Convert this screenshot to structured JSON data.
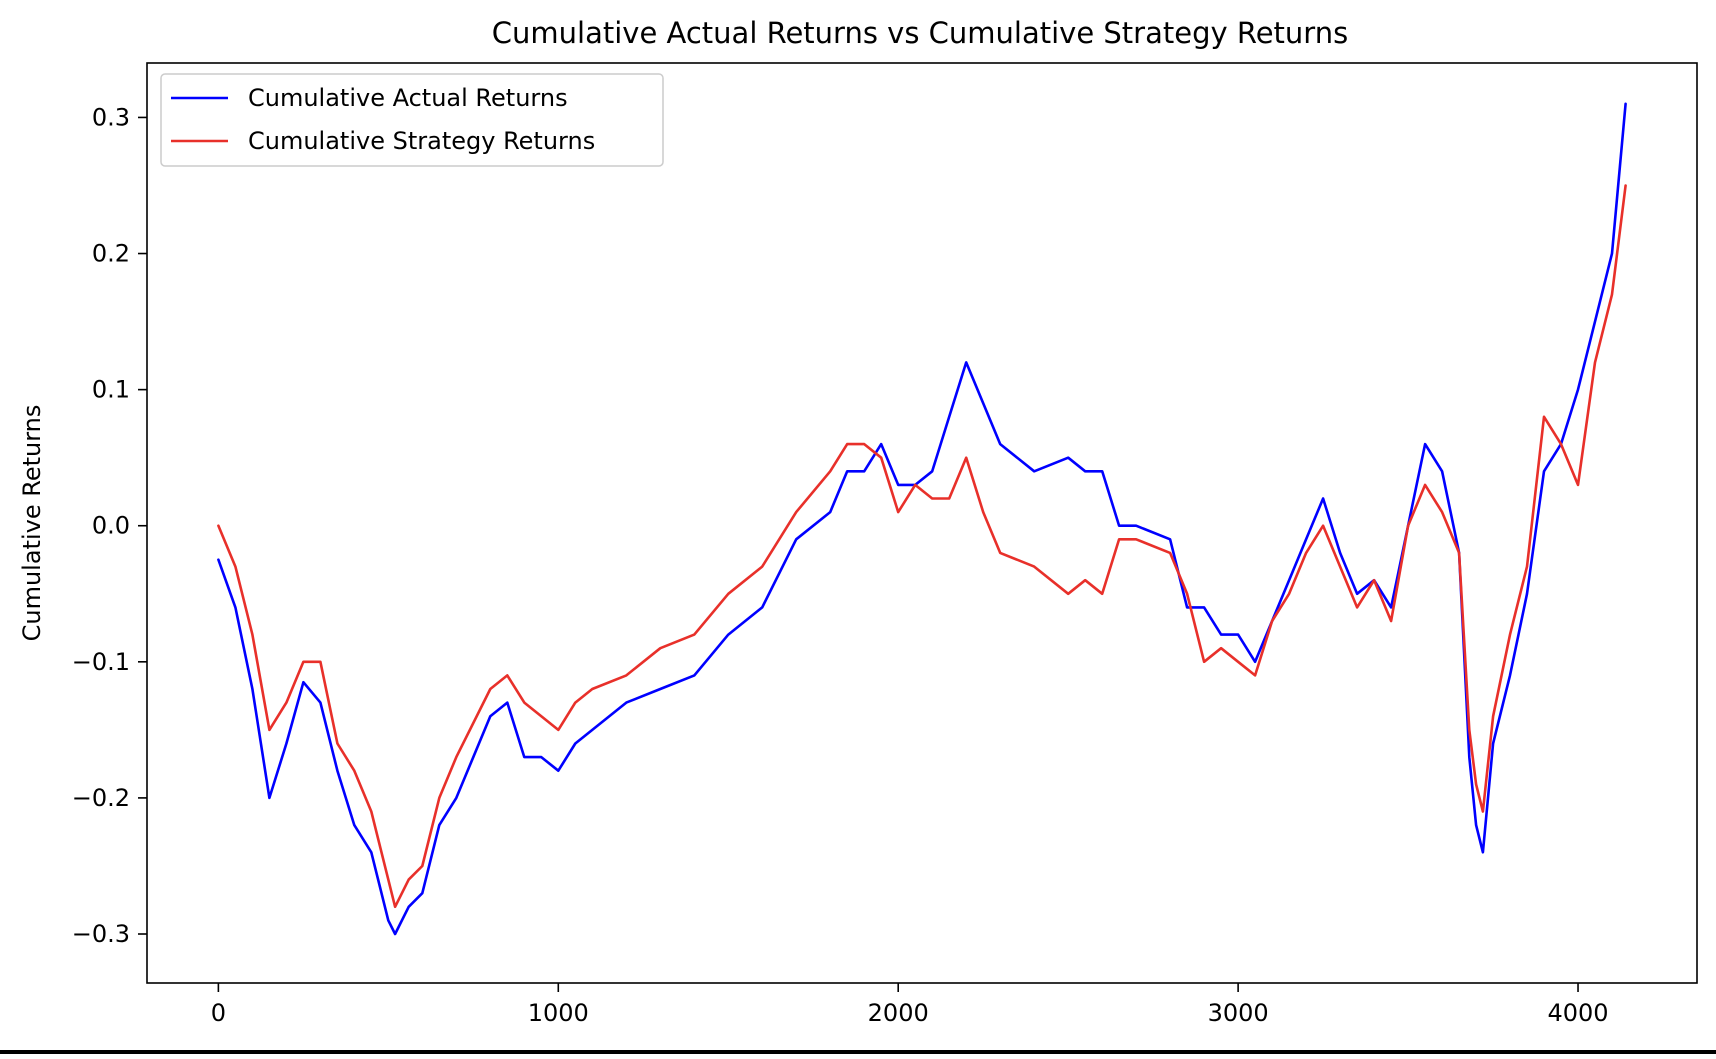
{
  "chart_data": {
    "type": "line",
    "title": "Cumulative Actual Returns vs Cumulative Strategy Returns",
    "xlabel": "",
    "ylabel": "Cumulative Returns",
    "xlim": [
      -210,
      4350
    ],
    "ylim": [
      -0.336,
      0.34
    ],
    "xticks": [
      0,
      1000,
      2000,
      3000,
      4000
    ],
    "xtick_labels": [
      "0",
      "1000",
      "2000",
      "3000",
      "4000"
    ],
    "yticks": [
      -0.3,
      -0.2,
      -0.1,
      0.0,
      0.1,
      0.2,
      0.3
    ],
    "ytick_labels": [
      "−0.3",
      "−0.2",
      "−0.1",
      "0.0",
      "0.1",
      "0.2",
      "0.3"
    ],
    "grid": false,
    "legend_position": "upper-left",
    "series": [
      {
        "name": "Cumulative Actual Returns",
        "color": "#0000ff",
        "x": [
          0,
          50,
          100,
          150,
          200,
          250,
          300,
          350,
          400,
          450,
          500,
          520,
          560,
          600,
          650,
          700,
          800,
          850,
          900,
          950,
          1000,
          1050,
          1100,
          1200,
          1300,
          1400,
          1500,
          1600,
          1700,
          1800,
          1850,
          1900,
          1950,
          2000,
          2050,
          2100,
          2150,
          2200,
          2250,
          2300,
          2400,
          2500,
          2550,
          2600,
          2650,
          2700,
          2800,
          2850,
          2900,
          2950,
          3000,
          3050,
          3100,
          3150,
          3200,
          3250,
          3300,
          3350,
          3400,
          3450,
          3500,
          3550,
          3600,
          3650,
          3680,
          3700,
          3720,
          3750,
          3800,
          3850,
          3900,
          3950,
          4000,
          4050,
          4100,
          4140
        ],
        "y": [
          -0.025,
          -0.06,
          -0.12,
          -0.2,
          -0.16,
          -0.115,
          -0.13,
          -0.18,
          -0.22,
          -0.24,
          -0.29,
          -0.3,
          -0.28,
          -0.27,
          -0.22,
          -0.2,
          -0.14,
          -0.13,
          -0.17,
          -0.17,
          -0.18,
          -0.16,
          -0.15,
          -0.13,
          -0.12,
          -0.11,
          -0.08,
          -0.06,
          -0.01,
          0.01,
          0.04,
          0.04,
          0.06,
          0.03,
          0.03,
          0.04,
          0.08,
          0.12,
          0.09,
          0.06,
          0.04,
          0.05,
          0.04,
          0.04,
          0.0,
          0.0,
          -0.01,
          -0.06,
          -0.06,
          -0.08,
          -0.08,
          -0.1,
          -0.07,
          -0.04,
          -0.01,
          0.02,
          -0.02,
          -0.05,
          -0.04,
          -0.06,
          0.0,
          0.06,
          0.04,
          -0.02,
          -0.17,
          -0.22,
          -0.24,
          -0.16,
          -0.11,
          -0.05,
          0.04,
          0.06,
          0.1,
          0.15,
          0.2,
          0.31
        ]
      },
      {
        "name": "Cumulative Strategy Returns",
        "color": "#e8302a",
        "x": [
          0,
          50,
          100,
          150,
          200,
          250,
          300,
          350,
          400,
          450,
          500,
          520,
          560,
          600,
          650,
          700,
          800,
          850,
          900,
          950,
          1000,
          1050,
          1100,
          1200,
          1300,
          1400,
          1500,
          1600,
          1700,
          1800,
          1850,
          1900,
          1950,
          2000,
          2050,
          2100,
          2150,
          2200,
          2250,
          2300,
          2400,
          2500,
          2550,
          2600,
          2650,
          2700,
          2800,
          2850,
          2900,
          2950,
          3000,
          3050,
          3100,
          3150,
          3200,
          3250,
          3300,
          3350,
          3400,
          3450,
          3500,
          3550,
          3600,
          3650,
          3680,
          3700,
          3720,
          3750,
          3800,
          3850,
          3900,
          3950,
          4000,
          4050,
          4100,
          4140
        ],
        "y": [
          0.0,
          -0.03,
          -0.08,
          -0.15,
          -0.13,
          -0.1,
          -0.1,
          -0.16,
          -0.18,
          -0.21,
          -0.26,
          -0.28,
          -0.26,
          -0.25,
          -0.2,
          -0.17,
          -0.12,
          -0.11,
          -0.13,
          -0.14,
          -0.15,
          -0.13,
          -0.12,
          -0.11,
          -0.09,
          -0.08,
          -0.05,
          -0.03,
          0.01,
          0.04,
          0.06,
          0.06,
          0.05,
          0.01,
          0.03,
          0.02,
          0.02,
          0.05,
          0.01,
          -0.02,
          -0.03,
          -0.05,
          -0.04,
          -0.05,
          -0.01,
          -0.01,
          -0.02,
          -0.05,
          -0.1,
          -0.09,
          -0.1,
          -0.11,
          -0.07,
          -0.05,
          -0.02,
          0.0,
          -0.03,
          -0.06,
          -0.04,
          -0.07,
          0.0,
          0.03,
          0.01,
          -0.02,
          -0.15,
          -0.19,
          -0.21,
          -0.14,
          -0.08,
          -0.03,
          0.08,
          0.06,
          0.03,
          0.12,
          0.17,
          0.25
        ]
      }
    ]
  }
}
